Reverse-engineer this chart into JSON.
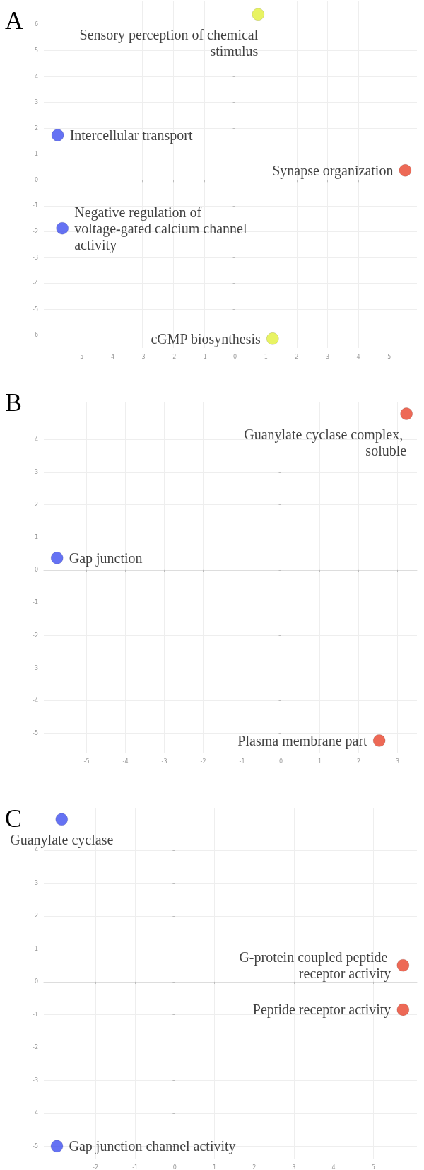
{
  "chart_data": [
    {
      "type": "scatter",
      "title": "A",
      "x": [
        0.75,
        -5.75,
        -5.6,
        5.52,
        1.22
      ],
      "values": [
        6.4,
        1.73,
        -1.87,
        0.37,
        -6.14
      ],
      "colors": [
        "#e2f03c",
        "#3f4ff0",
        "#3f4ff0",
        "#e8432c",
        "#e2f03c"
      ],
      "value_labels": [
        "Sensory perception of chemical stimulus",
        "Intercellular transport",
        "Negative regulation of voltage-gated calcium channel activity",
        "Synapse organization",
        "cGMP biosynthesis"
      ],
      "xlim": [
        -6.2,
        5.9
      ],
      "ylim": [
        -6.5,
        6.9
      ],
      "xticks": [
        -5,
        -4,
        -3,
        -2,
        -1,
        0,
        1,
        2,
        3,
        4,
        5
      ],
      "yticks": [
        -6,
        -5,
        -4,
        -3,
        -2,
        -1,
        0,
        1,
        2,
        3,
        4,
        5,
        6
      ],
      "grid": true,
      "marker": "circle"
    },
    {
      "type": "scatter",
      "title": "B",
      "x": [
        3.23,
        -5.76,
        2.53
      ],
      "values": [
        4.79,
        0.37,
        -5.23
      ],
      "colors": [
        "#e8432c",
        "#3f4ff0",
        "#e8432c"
      ],
      "value_labels": [
        "Guanylate cyclase complex, soluble",
        "Gap junction",
        "Plasma membrane part"
      ],
      "xlim": [
        -6.1,
        3.5
      ],
      "ylim": [
        -5.6,
        5.16
      ],
      "xticks": [
        -5,
        -4,
        -3,
        -2,
        -1,
        0,
        1,
        2,
        3
      ],
      "yticks": [
        -5,
        -4,
        -3,
        -2,
        -1,
        0,
        1,
        2,
        3,
        4
      ],
      "grid": true,
      "marker": "circle"
    },
    {
      "type": "scatter",
      "title": "C",
      "x": [
        -2.85,
        5.75,
        5.75,
        -2.97
      ],
      "values": [
        4.94,
        0.5,
        -0.85,
        -5.0
      ],
      "colors": [
        "#3f4ff0",
        "#e8432c",
        "#e8432c",
        "#3f4ff0"
      ],
      "value_labels": [
        "Guanylate cyclase",
        "G-protein coupled peptide receptor activity",
        "Peptide receptor activity",
        "Gap junction channel activity"
      ],
      "xlim": [
        -3.3,
        6.1
      ],
      "ylim": [
        -5.38,
        5.29
      ],
      "xticks": [
        -2,
        -1,
        0,
        1,
        2,
        3,
        4,
        5
      ],
      "yticks": [
        -5,
        -4,
        -3,
        -2,
        -1,
        0,
        1,
        2,
        3,
        4
      ],
      "grid": true,
      "marker": "circle"
    }
  ]
}
